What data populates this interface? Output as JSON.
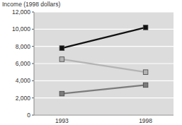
{
  "chart_data": {
    "type": "line",
    "y_label": "Income (1998 dollars)",
    "categories": [
      "1993",
      "1998"
    ],
    "series": [
      {
        "color": "#111111",
        "marker": "square",
        "values": [
          7800,
          10200
        ]
      },
      {
        "color": "#b4b4b4",
        "marker": "square",
        "values": [
          6500,
          5000
        ]
      },
      {
        "color": "#7c7c7c",
        "marker": "square",
        "values": [
          2500,
          3500
        ]
      }
    ],
    "ylim": [
      0,
      12000
    ],
    "yticks": [
      0,
      {
        "value": 2000,
        "label": "2,000"
      },
      {
        "value": 4000,
        "label": "4,000"
      },
      {
        "value": 6000,
        "label": "6,000"
      },
      {
        "value": 8000,
        "label": "8,000"
      },
      {
        "value": 10000,
        "label": "10,000"
      },
      {
        "value": 12000,
        "label": "12,000"
      }
    ],
    "grid": true
  }
}
